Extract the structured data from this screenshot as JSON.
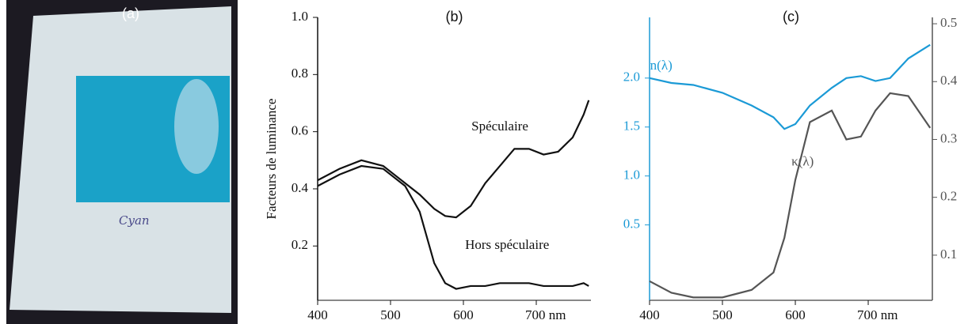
{
  "photo": {
    "label": "(a)",
    "text": "Cyan"
  },
  "chart_data": [
    {
      "type": "line",
      "title": "(b)",
      "ylabel": "Facteurs de luminance",
      "x": [
        400,
        430,
        460,
        490,
        520,
        540,
        560,
        575,
        590,
        610,
        630,
        650,
        670,
        690,
        710,
        730,
        750,
        765,
        772
      ],
      "xlim": [
        400,
        775
      ],
      "xticks": [
        400,
        500,
        600,
        {
          "value": 700,
          "label": "700 nm"
        }
      ],
      "ylim": [
        0.01,
        1.0
      ],
      "yticks": [
        0.2,
        0.4,
        0.6,
        0.8,
        {
          "value": 1,
          "label": "1.0"
        }
      ],
      "series": [
        {
          "name": "Spéculaire",
          "color": "#111111",
          "values": [
            0.43,
            0.47,
            0.5,
            0.48,
            0.42,
            0.38,
            0.33,
            0.305,
            0.3,
            0.34,
            0.42,
            0.48,
            0.54,
            0.54,
            0.52,
            0.53,
            0.58,
            0.66,
            0.71
          ]
        },
        {
          "name": "Hors spéculaire",
          "color": "#111111",
          "values": [
            0.41,
            0.45,
            0.48,
            0.47,
            0.41,
            0.32,
            0.14,
            0.07,
            0.05,
            0.06,
            0.06,
            0.07,
            0.07,
            0.07,
            0.06,
            0.06,
            0.06,
            0.07,
            0.06
          ]
        }
      ]
    },
    {
      "type": "line",
      "title": "(c)",
      "x": [
        400,
        430,
        460,
        500,
        540,
        570,
        585,
        600,
        620,
        650,
        670,
        690,
        710,
        730,
        755,
        785
      ],
      "xlim": [
        400,
        788
      ],
      "xticks": [
        400,
        500,
        600,
        {
          "value": 700,
          "label": "700 nm"
        }
      ],
      "ylim": [
        -0.27,
        2.62
      ],
      "yticks": [
        0.5,
        {
          "value": 1,
          "label": "1.0"
        },
        1.5,
        {
          "value": 2,
          "label": "2.0"
        }
      ],
      "ycolor": "#1b9ad6",
      "y2lim": [
        0.022,
        0.511
      ],
      "y2ticks": [
        0.1,
        0.2,
        0.3,
        0.4,
        0.5
      ],
      "y2color": "#555555",
      "series": [
        {
          "name": "n(λ)",
          "color": "#1b9ad6",
          "values": [
            2.0,
            1.95,
            1.93,
            1.85,
            1.72,
            1.6,
            1.48,
            1.53,
            1.72,
            1.9,
            2.0,
            2.02,
            1.97,
            2.0,
            2.2,
            2.34
          ]
        },
        {
          "name": "κ(λ)",
          "color": "#555555",
          "axis": "y2",
          "values": [
            0.055,
            0.035,
            0.027,
            0.027,
            0.04,
            0.07,
            0.13,
            0.23,
            0.33,
            0.35,
            0.3,
            0.305,
            0.35,
            0.38,
            0.375,
            0.32
          ]
        }
      ]
    }
  ]
}
